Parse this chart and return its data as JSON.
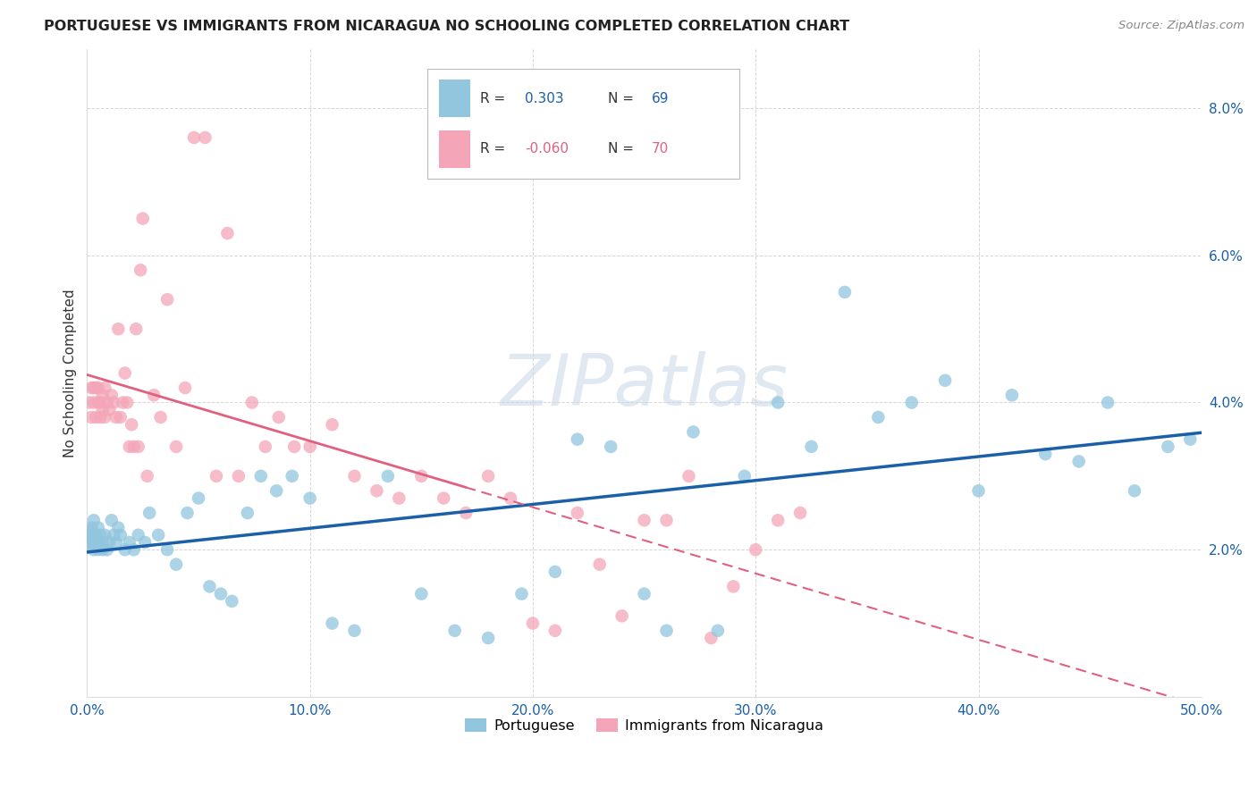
{
  "title": "PORTUGUESE VS IMMIGRANTS FROM NICARAGUA NO SCHOOLING COMPLETED CORRELATION CHART",
  "source": "Source: ZipAtlas.com",
  "ylabel": "No Schooling Completed",
  "xlim": [
    0.0,
    0.5
  ],
  "ylim": [
    0.0,
    0.088
  ],
  "xticks": [
    0.0,
    0.1,
    0.2,
    0.3,
    0.4,
    0.5
  ],
  "yticks": [
    0.0,
    0.02,
    0.04,
    0.06,
    0.08
  ],
  "ytick_labels": [
    "",
    "2.0%",
    "4.0%",
    "6.0%",
    "8.0%"
  ],
  "xtick_labels": [
    "0.0%",
    "10.0%",
    "20.0%",
    "30.0%",
    "40.0%",
    "50.0%"
  ],
  "blue_R": 0.303,
  "blue_N": 69,
  "pink_R": -0.06,
  "pink_N": 70,
  "blue_color": "#92c5de",
  "pink_color": "#f4a6b8",
  "blue_line_color": "#1a5fa8",
  "pink_line_color": "#e06080",
  "background_color": "#ffffff",
  "grid_color": "#cccccc",
  "watermark": "ZIPatlas",
  "legend_label_blue": "Portuguese",
  "legend_label_pink": "Immigrants from Nicaragua",
  "blue_points_x": [
    0.001,
    0.002,
    0.002,
    0.003,
    0.003,
    0.004,
    0.004,
    0.005,
    0.005,
    0.006,
    0.006,
    0.007,
    0.007,
    0.008,
    0.009,
    0.01,
    0.011,
    0.012,
    0.013,
    0.014,
    0.015,
    0.017,
    0.019,
    0.021,
    0.023,
    0.026,
    0.028,
    0.032,
    0.036,
    0.04,
    0.045,
    0.05,
    0.055,
    0.06,
    0.065,
    0.072,
    0.078,
    0.085,
    0.092,
    0.1,
    0.11,
    0.12,
    0.135,
    0.15,
    0.165,
    0.18,
    0.195,
    0.21,
    0.22,
    0.235,
    0.25,
    0.26,
    0.272,
    0.283,
    0.295,
    0.31,
    0.325,
    0.34,
    0.355,
    0.37,
    0.385,
    0.4,
    0.415,
    0.43,
    0.445,
    0.458,
    0.47,
    0.485,
    0.495
  ],
  "blue_points_y": [
    0.022,
    0.021,
    0.023,
    0.02,
    0.024,
    0.021,
    0.022,
    0.02,
    0.023,
    0.021,
    0.022,
    0.02,
    0.021,
    0.022,
    0.02,
    0.021,
    0.024,
    0.022,
    0.021,
    0.023,
    0.022,
    0.02,
    0.021,
    0.02,
    0.022,
    0.021,
    0.025,
    0.022,
    0.02,
    0.018,
    0.025,
    0.027,
    0.015,
    0.014,
    0.013,
    0.025,
    0.03,
    0.028,
    0.03,
    0.027,
    0.01,
    0.009,
    0.03,
    0.014,
    0.009,
    0.008,
    0.014,
    0.017,
    0.035,
    0.034,
    0.014,
    0.009,
    0.036,
    0.009,
    0.03,
    0.04,
    0.034,
    0.055,
    0.038,
    0.04,
    0.043,
    0.028,
    0.041,
    0.033,
    0.032,
    0.04,
    0.028,
    0.034,
    0.035
  ],
  "pink_points_x": [
    0.001,
    0.002,
    0.002,
    0.003,
    0.003,
    0.004,
    0.004,
    0.005,
    0.005,
    0.006,
    0.006,
    0.007,
    0.007,
    0.008,
    0.008,
    0.009,
    0.01,
    0.011,
    0.012,
    0.013,
    0.014,
    0.015,
    0.016,
    0.017,
    0.018,
    0.019,
    0.02,
    0.021,
    0.022,
    0.023,
    0.024,
    0.025,
    0.027,
    0.03,
    0.033,
    0.036,
    0.04,
    0.044,
    0.048,
    0.053,
    0.058,
    0.063,
    0.068,
    0.074,
    0.08,
    0.086,
    0.093,
    0.1,
    0.11,
    0.12,
    0.13,
    0.14,
    0.15,
    0.16,
    0.17,
    0.18,
    0.19,
    0.2,
    0.21,
    0.22,
    0.23,
    0.24,
    0.25,
    0.26,
    0.27,
    0.28,
    0.29,
    0.3,
    0.31,
    0.32
  ],
  "pink_points_y": [
    0.04,
    0.042,
    0.038,
    0.042,
    0.04,
    0.042,
    0.038,
    0.04,
    0.042,
    0.04,
    0.038,
    0.041,
    0.039,
    0.042,
    0.038,
    0.04,
    0.039,
    0.041,
    0.04,
    0.038,
    0.05,
    0.038,
    0.04,
    0.044,
    0.04,
    0.034,
    0.037,
    0.034,
    0.05,
    0.034,
    0.058,
    0.065,
    0.03,
    0.041,
    0.038,
    0.054,
    0.034,
    0.042,
    0.076,
    0.076,
    0.03,
    0.063,
    0.03,
    0.04,
    0.034,
    0.038,
    0.034,
    0.034,
    0.037,
    0.03,
    0.028,
    0.027,
    0.03,
    0.027,
    0.025,
    0.03,
    0.027,
    0.01,
    0.009,
    0.025,
    0.018,
    0.011,
    0.024,
    0.024,
    0.03,
    0.008,
    0.015,
    0.02,
    0.024,
    0.025
  ]
}
